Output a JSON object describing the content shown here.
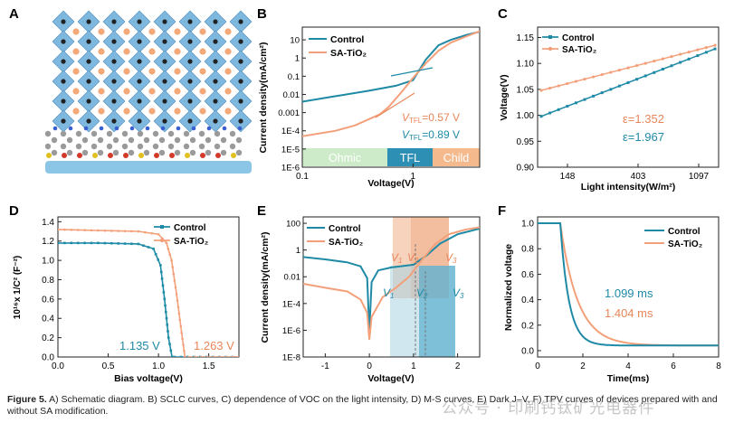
{
  "colors": {
    "control": "#1f8aa6",
    "sa": "#f3a07a",
    "dark_orange": "#e8865a",
    "ohmic": "#cdebc9",
    "tfl": "#2d8fb3",
    "child": "#f4b98d"
  },
  "panels": {
    "a": {
      "letter": "A"
    },
    "b": {
      "letter": "B"
    },
    "c": {
      "letter": "C"
    },
    "d": {
      "letter": "D"
    },
    "e": {
      "letter": "E"
    },
    "f": {
      "letter": "F"
    }
  },
  "chart_data": [
    {
      "id": "B",
      "type": "line",
      "scale": "log-log",
      "xlabel": "Voltage(V)",
      "ylabel": "Current density(mA/cm²)",
      "xticks": [
        "0.1",
        "1"
      ],
      "yticks": [
        "10",
        "1",
        "0.1",
        "0.01",
        "0.001",
        "1E-4",
        "1E-5",
        "1E-6"
      ],
      "xlim": [
        0.1,
        4
      ],
      "ylim": [
        1e-06,
        50
      ],
      "legend": [
        "Control",
        "SA-TiO₂"
      ],
      "regions": [
        "Ohmic",
        "TFL",
        "Child"
      ],
      "annotations": {
        "sa_vtfl": "0.57 V",
        "control_vtfl": "0.89 V",
        "vtfl_prefix": "V",
        "vtfl_sub": "TFL",
        "vtfl_eq": "="
      },
      "series": [
        {
          "name": "Control",
          "x": [
            0.1,
            0.2,
            0.4,
            0.7,
            1.0,
            1.3,
            1.7,
            2.2,
            3.0,
            4.0
          ],
          "y": [
            0.004,
            0.008,
            0.016,
            0.03,
            0.06,
            0.8,
            5,
            10,
            18,
            28
          ]
        },
        {
          "name": "SA-TiO₂",
          "x": [
            0.1,
            0.2,
            0.3,
            0.5,
            0.6,
            0.8,
            1.0,
            1.3,
            1.7,
            2.2,
            3.0,
            4.0
          ],
          "y": [
            5e-05,
            0.0001,
            0.0002,
            0.0008,
            0.002,
            0.015,
            0.08,
            0.5,
            2.5,
            7,
            15,
            30
          ]
        }
      ]
    },
    {
      "id": "C",
      "type": "line",
      "xlabel": "Light intensity(W/m²)",
      "ylabel": "Voltage(V)",
      "xticks": [
        "148",
        "403",
        "1097"
      ],
      "yticks": [
        "1.15",
        "1.10",
        "1.05",
        "1.00",
        "0.95",
        "0.90"
      ],
      "ylim": [
        0.9,
        1.17
      ],
      "legend": [
        "Control",
        "SA-TiO₂"
      ],
      "annotations": {
        "sa_eps": "ε=1.352",
        "control_eps": "ε=1.967"
      },
      "series": [
        {
          "name": "Control",
          "x_log_start": 1.77,
          "x_log_end": 3.04,
          "y": [
            0.998,
            1.128
          ]
        },
        {
          "name": "SA-TiO₂",
          "x_log_start": 1.77,
          "x_log_end": 3.04,
          "y": [
            1.048,
            1.135
          ]
        }
      ]
    },
    {
      "id": "D",
      "type": "line",
      "xlabel": "Bias voltage(V)",
      "ylabel": "10¹⁶x 1/C² (F⁻²)",
      "xticks": [
        "0.0",
        "0.5",
        "1.0",
        "1.5"
      ],
      "yticks": [
        "1.4",
        "1.2",
        "1.0",
        "0.8",
        "0.6",
        "0.4",
        "0.2",
        "0.0"
      ],
      "xlim": [
        0,
        1.8
      ],
      "ylim": [
        0,
        1.45
      ],
      "legend": [
        "Control",
        "SA-TiO₂"
      ],
      "annotations": {
        "control_vbi": "1.135 V",
        "sa_vbi": "1.263 V"
      },
      "series": [
        {
          "name": "Control",
          "x": [
            0,
            0.4,
            0.8,
            0.95,
            1.02,
            1.06,
            1.1,
            1.135,
            1.16,
            1.8
          ],
          "y": [
            1.18,
            1.18,
            1.17,
            1.12,
            0.95,
            0.6,
            0.2,
            0.0,
            0.0,
            0.0
          ]
        },
        {
          "name": "SA-TiO₂",
          "x": [
            0,
            0.4,
            0.8,
            1.0,
            1.08,
            1.13,
            1.18,
            1.23,
            1.263,
            1.3,
            1.8
          ],
          "y": [
            1.32,
            1.31,
            1.3,
            1.27,
            1.18,
            1.0,
            0.65,
            0.25,
            0.0,
            0.0,
            0.0
          ]
        }
      ]
    },
    {
      "id": "E",
      "type": "line",
      "scale": "semilog-y",
      "xlabel": "Voltage(V)",
      "ylabel": "Current density(mA/cm²)",
      "xticks": [
        "-1",
        "0",
        "1",
        "2"
      ],
      "yticks": [
        "100",
        "1",
        "0.01",
        "1E-4",
        "1E-6",
        "1E-8"
      ],
      "xlim": [
        -1.5,
        2.5
      ],
      "ylim": [
        1e-08,
        300
      ],
      "legend": [
        "Control",
        "SA-TiO₂"
      ],
      "labels": {
        "v1": "V",
        "v2": "V",
        "v3": "V",
        "s1": "1",
        "s2": "2",
        "s3": "3"
      },
      "series": [
        {
          "name": "Control",
          "x": [
            -1.5,
            -1.0,
            -0.5,
            -0.2,
            -0.05,
            0.0,
            0.05,
            0.2,
            0.5,
            1.0,
            1.3,
            1.6,
            2.0,
            2.5
          ],
          "y": [
            0.3,
            0.2,
            0.12,
            0.06,
            0.008,
            8e-07,
            0.004,
            0.03,
            0.05,
            0.08,
            0.4,
            3,
            15,
            40
          ]
        },
        {
          "name": "SA-TiO₂",
          "x": [
            -1.5,
            -1.0,
            -0.5,
            -0.2,
            -0.05,
            0.0,
            0.05,
            0.3,
            0.6,
            0.9,
            1.2,
            1.5,
            1.8,
            2.2,
            2.5
          ],
          "y": [
            0.003,
            0.0015,
            0.0008,
            0.0002,
            2e-05,
            2e-07,
            1e-05,
            0.0003,
            0.0015,
            0.01,
            0.2,
            3,
            15,
            35,
            50
          ]
        }
      ]
    },
    {
      "id": "F",
      "type": "line",
      "xlabel": "Time(ms)",
      "ylabel": "Normalized voltage",
      "xticks": [
        "0",
        "2",
        "4",
        "6",
        "8"
      ],
      "yticks": [
        "1.0",
        "0.8",
        "0.6",
        "0.4",
        "0.2",
        "0.0"
      ],
      "xlim": [
        0,
        8
      ],
      "ylim": [
        -0.05,
        1.05
      ],
      "legend": [
        "Control",
        "SA-TiO₂"
      ],
      "annotations": {
        "control_tau": "1.099 ms",
        "sa_tau": "1.404 ms"
      },
      "series": [
        {
          "name": "Control",
          "tau": 1.099,
          "t0": 1.0,
          "floor": 0.04
        },
        {
          "name": "SA-TiO₂",
          "tau": 1.404,
          "t0": 1.0,
          "floor": 0.04
        }
      ]
    }
  ],
  "caption": {
    "label": "Figure 5.",
    "text": " A) Schematic diagram. B) SCLC curves, C) dependence of VOC on the light intensity, D) M-S curves, E) Dark J–V, F) TPV curves of devices prepared with and without SA modification."
  },
  "watermark": "公众号 · 印刷钙钛矿光电器件"
}
